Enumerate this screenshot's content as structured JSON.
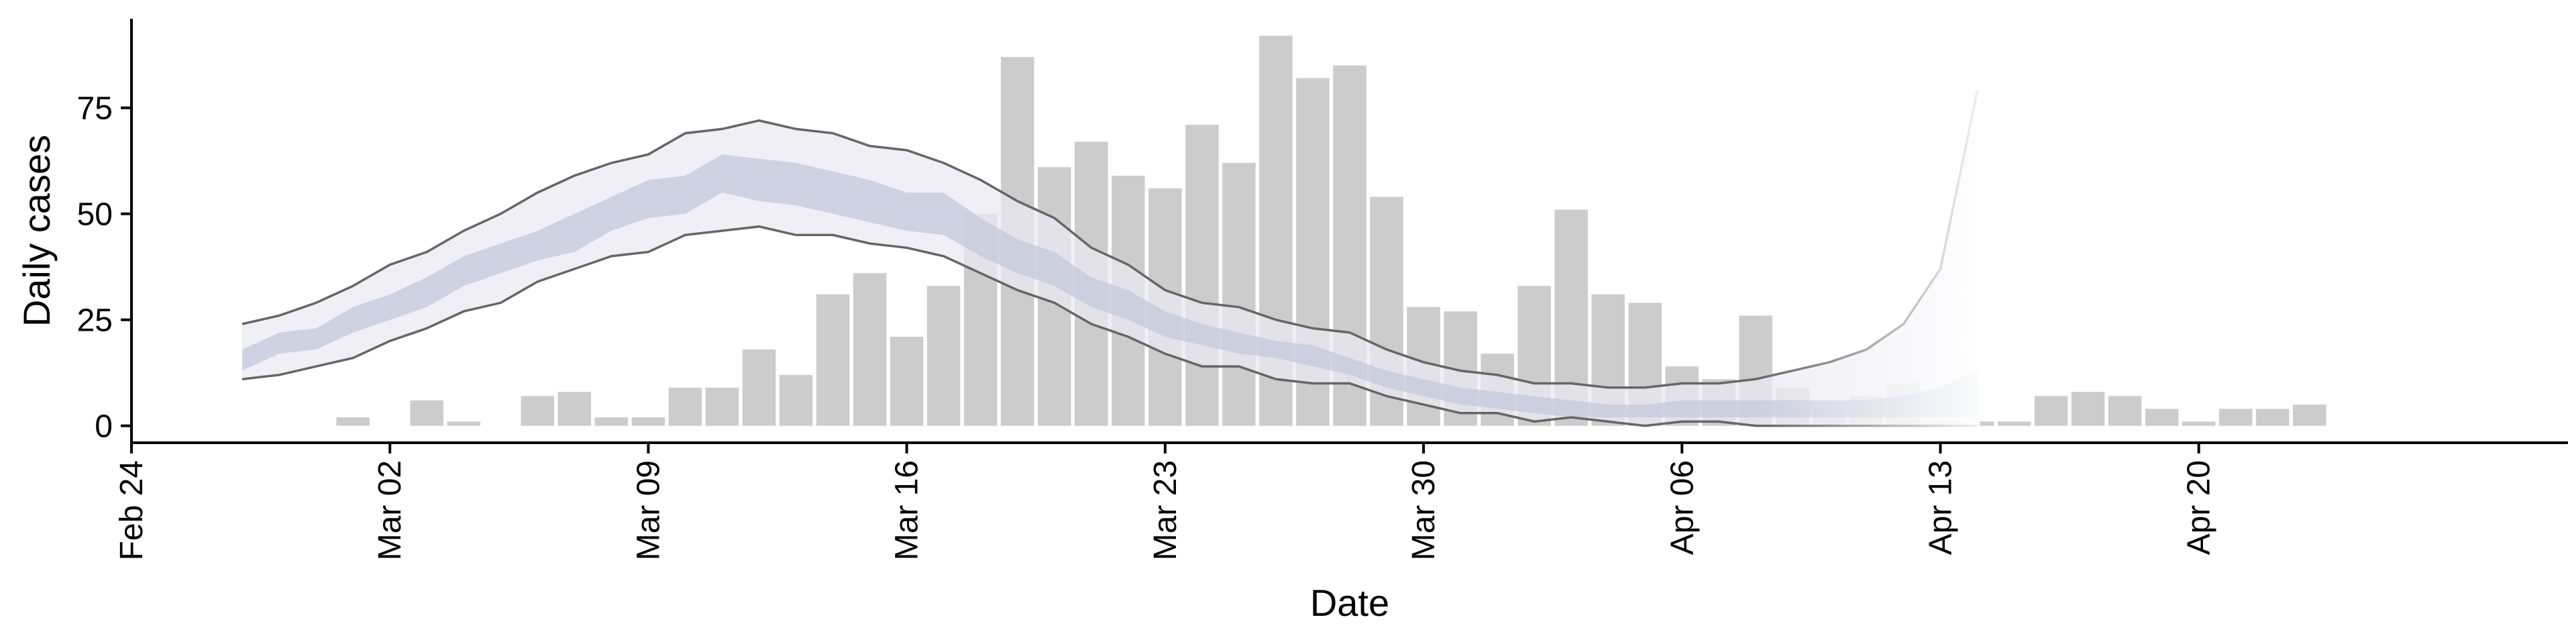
{
  "chart_data": {
    "type": "bar",
    "xlabel": "Date",
    "ylabel": "Daily cases",
    "x_ticks": [
      "Feb 24",
      "Mar 02",
      "Mar 09",
      "Mar 16",
      "Mar 23",
      "Mar 30",
      "Apr 06",
      "Apr 13",
      "Apr 20"
    ],
    "y_ticks": [
      "0",
      "25",
      "50",
      "75"
    ],
    "xlim": [
      "2020-02-24",
      "2020-04-30"
    ],
    "ylim": [
      -4,
      96
    ],
    "grid": false,
    "bar_color": "#cccccc",
    "band_outer_color": "#e9eaf2",
    "band_inner_color": "#c3c9dc",
    "line_color": "#666666",
    "projection_fade_start": "2020-04-08",
    "bars": {
      "dates": [
        "2020-02-24",
        "2020-02-25",
        "2020-02-26",
        "2020-02-27",
        "2020-02-28",
        "2020-02-29",
        "2020-03-01",
        "2020-03-02",
        "2020-03-03",
        "2020-03-04",
        "2020-03-05",
        "2020-03-06",
        "2020-03-07",
        "2020-03-08",
        "2020-03-09",
        "2020-03-10",
        "2020-03-11",
        "2020-03-12",
        "2020-03-13",
        "2020-03-14",
        "2020-03-15",
        "2020-03-16",
        "2020-03-17",
        "2020-03-18",
        "2020-03-19",
        "2020-03-20",
        "2020-03-21",
        "2020-03-22",
        "2020-03-23",
        "2020-03-24",
        "2020-03-25",
        "2020-03-26",
        "2020-03-27",
        "2020-03-28",
        "2020-03-29",
        "2020-03-30",
        "2020-03-31",
        "2020-04-01",
        "2020-04-02",
        "2020-04-03",
        "2020-04-04",
        "2020-04-05",
        "2020-04-06",
        "2020-04-07",
        "2020-04-08",
        "2020-04-09",
        "2020-04-10",
        "2020-04-11",
        "2020-04-12",
        "2020-04-13",
        "2020-04-14",
        "2020-04-15",
        "2020-04-16",
        "2020-04-17",
        "2020-04-18",
        "2020-04-19",
        "2020-04-20",
        "2020-04-21",
        "2020-04-22",
        "2020-04-23",
        "2020-04-24"
      ],
      "values": [
        0,
        0,
        0,
        0,
        0,
        0,
        2,
        0,
        6,
        1,
        0,
        7,
        8,
        2,
        2,
        9,
        9,
        18,
        12,
        31,
        36,
        21,
        33,
        50,
        87,
        61,
        67,
        59,
        56,
        71,
        62,
        92,
        82,
        85,
        54,
        28,
        27,
        17,
        33,
        51,
        31,
        29,
        14,
        11,
        26,
        9,
        4,
        7,
        10,
        1,
        1,
        1,
        7,
        8,
        7,
        4,
        1,
        4,
        4,
        5,
        0
      ]
    },
    "ribbon": {
      "dates": [
        "2020-02-27",
        "2020-02-28",
        "2020-02-29",
        "2020-03-01",
        "2020-03-02",
        "2020-03-03",
        "2020-03-04",
        "2020-03-05",
        "2020-03-06",
        "2020-03-07",
        "2020-03-08",
        "2020-03-09",
        "2020-03-10",
        "2020-03-11",
        "2020-03-12",
        "2020-03-13",
        "2020-03-14",
        "2020-03-15",
        "2020-03-16",
        "2020-03-17",
        "2020-03-18",
        "2020-03-19",
        "2020-03-20",
        "2020-03-21",
        "2020-03-22",
        "2020-03-23",
        "2020-03-24",
        "2020-03-25",
        "2020-03-26",
        "2020-03-27",
        "2020-03-28",
        "2020-03-29",
        "2020-03-30",
        "2020-03-31",
        "2020-04-01",
        "2020-04-02",
        "2020-04-03",
        "2020-04-04",
        "2020-04-05",
        "2020-04-06",
        "2020-04-07",
        "2020-04-08",
        "2020-04-09",
        "2020-04-10",
        "2020-04-11",
        "2020-04-12",
        "2020-04-13",
        "2020-04-14"
      ],
      "outer_upper": [
        24,
        26,
        29,
        33,
        38,
        41,
        46,
        50,
        55,
        59,
        62,
        64,
        69,
        70,
        72,
        70,
        69,
        66,
        65,
        62,
        58,
        53,
        49,
        42,
        38,
        32,
        29,
        28,
        25,
        23,
        22,
        18,
        15,
        13,
        12,
        10,
        10,
        9,
        9,
        10,
        10,
        11,
        13,
        15,
        18,
        24,
        37,
        79
      ],
      "inner_upper": [
        18,
        22,
        23,
        28,
        31,
        35,
        40,
        43,
        46,
        50,
        54,
        58,
        59,
        64,
        63,
        62,
        60,
        58,
        55,
        55,
        49,
        44,
        41,
        35,
        32,
        27,
        24,
        22,
        20,
        19,
        16,
        13,
        11,
        9,
        8,
        7,
        6,
        5,
        5,
        6,
        6,
        6,
        6,
        6,
        6,
        7,
        9,
        13
      ],
      "inner_lower": [
        13,
        17,
        18,
        22,
        25,
        28,
        33,
        36,
        39,
        41,
        46,
        49,
        50,
        55,
        53,
        52,
        50,
        48,
        46,
        45,
        40,
        36,
        33,
        28,
        25,
        21,
        19,
        17,
        16,
        14,
        12,
        9,
        7,
        5,
        4,
        3,
        2,
        2,
        2,
        2,
        2,
        2,
        2,
        2,
        2,
        2,
        2,
        2
      ],
      "outer_lower": [
        11,
        12,
        14,
        16,
        20,
        23,
        27,
        29,
        34,
        37,
        40,
        41,
        45,
        46,
        47,
        45,
        45,
        43,
        42,
        40,
        36,
        32,
        29,
        24,
        21,
        17,
        14,
        14,
        11,
        10,
        10,
        7,
        5,
        3,
        3,
        1,
        2,
        1,
        0,
        1,
        1,
        0,
        0,
        0,
        0,
        0,
        0,
        0
      ]
    }
  }
}
